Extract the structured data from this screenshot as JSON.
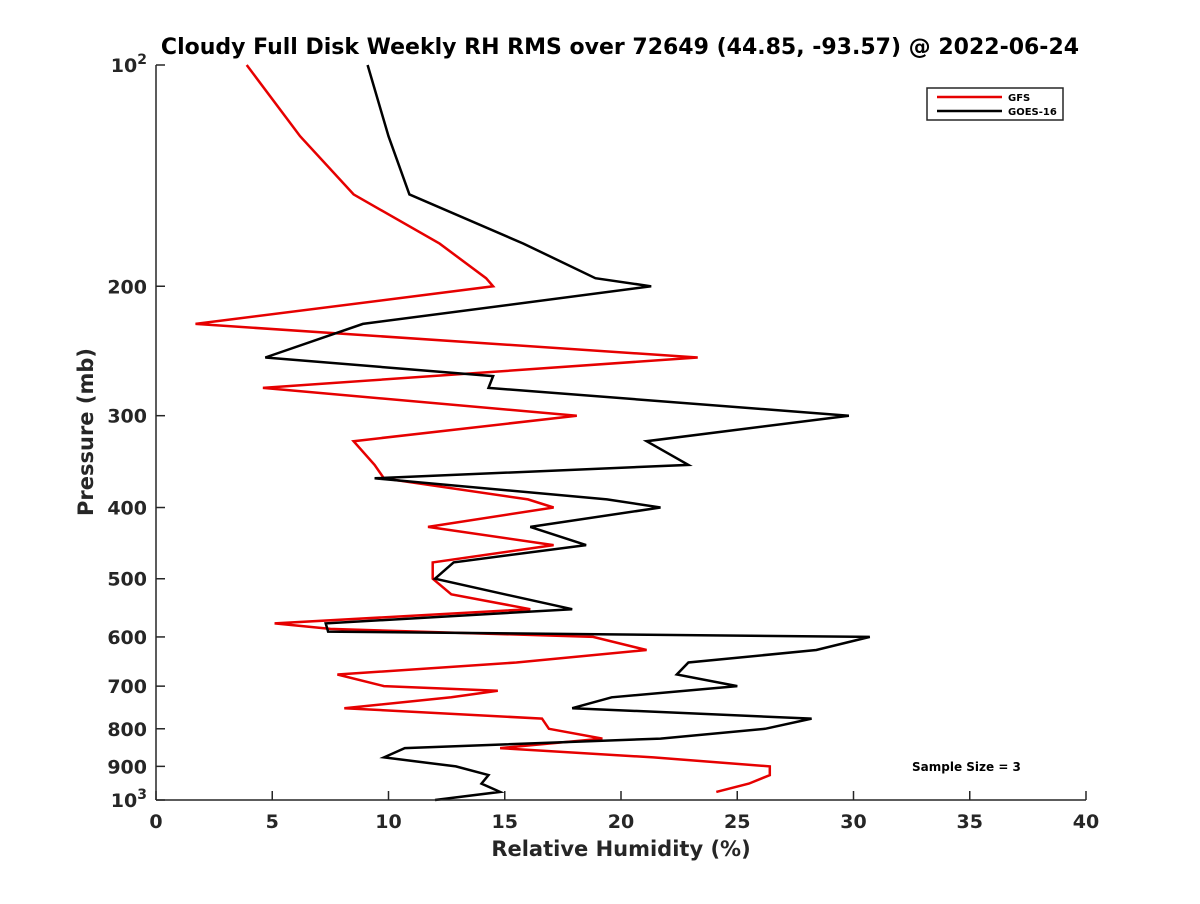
{
  "chart_data": {
    "type": "line",
    "title": "Cloudy Full Disk Weekly RH RMS over 72649 (44.85, -93.57) @ 2022-06-24",
    "xlabel": "Relative Humidity (%)",
    "ylabel": "Pressure (mb)",
    "xlim": [
      0,
      40
    ],
    "ylim": [
      100,
      1000
    ],
    "yscale": "log",
    "y_reversed": true,
    "grid": false,
    "legend_position": "top-right",
    "x_ticks": [
      0,
      5,
      10,
      15,
      20,
      25,
      30,
      35,
      40
    ],
    "x_tick_labels": [
      "0",
      "5",
      "10",
      "15",
      "20",
      "25",
      "30",
      "35",
      "40"
    ],
    "y_ticks": [
      100,
      200,
      300,
      400,
      500,
      600,
      700,
      800,
      900,
      1000
    ],
    "y_tick_labels": [
      {
        "value": 100,
        "base": "10",
        "exp": "2"
      },
      {
        "value": 200,
        "base": "200",
        "exp": ""
      },
      {
        "value": 300,
        "base": "300",
        "exp": ""
      },
      {
        "value": 400,
        "base": "400",
        "exp": ""
      },
      {
        "value": 500,
        "base": "500",
        "exp": ""
      },
      {
        "value": 600,
        "base": "600",
        "exp": ""
      },
      {
        "value": 700,
        "base": "700",
        "exp": ""
      },
      {
        "value": 800,
        "base": "800",
        "exp": ""
      },
      {
        "value": 900,
        "base": "900",
        "exp": ""
      },
      {
        "value": 1000,
        "base": "10",
        "exp": "3"
      }
    ],
    "annotation": "Sample Size = 3",
    "series": [
      {
        "name": "GFS",
        "color": "#e60000",
        "points": [
          [
            3.9,
            100
          ],
          [
            6.2,
            125
          ],
          [
            8.5,
            150
          ],
          [
            12.2,
            175
          ],
          [
            14.2,
            195
          ],
          [
            14.5,
            200
          ],
          [
            1.7,
            225
          ],
          [
            23.3,
            250
          ],
          [
            4.6,
            275
          ],
          [
            18.1,
            300
          ],
          [
            8.5,
            325
          ],
          [
            9.4,
            350
          ],
          [
            9.8,
            365
          ],
          [
            16.0,
            390
          ],
          [
            17.1,
            400
          ],
          [
            11.7,
            425
          ],
          [
            17.1,
            450
          ],
          [
            11.9,
            475
          ],
          [
            11.9,
            500
          ],
          [
            12.7,
            525
          ],
          [
            16.1,
            550
          ],
          [
            5.1,
            575
          ],
          [
            7.5,
            585
          ],
          [
            18.8,
            600
          ],
          [
            21.1,
            625
          ],
          [
            15.5,
            650
          ],
          [
            7.8,
            675
          ],
          [
            9.8,
            700
          ],
          [
            14.7,
            710
          ],
          [
            12.7,
            725
          ],
          [
            8.1,
            750
          ],
          [
            16.6,
            775
          ],
          [
            16.9,
            800
          ],
          [
            19.2,
            825
          ],
          [
            14.8,
            850
          ],
          [
            21.4,
            875
          ],
          [
            26.4,
            900
          ],
          [
            26.4,
            925
          ],
          [
            25.5,
            950
          ],
          [
            24.1,
            975
          ]
        ]
      },
      {
        "name": "GOES-16",
        "color": "#000000",
        "points": [
          [
            9.1,
            100
          ],
          [
            10.0,
            125
          ],
          [
            10.9,
            150
          ],
          [
            15.8,
            175
          ],
          [
            18.9,
            195
          ],
          [
            21.3,
            200
          ],
          [
            8.9,
            225
          ],
          [
            4.7,
            250
          ],
          [
            14.5,
            265
          ],
          [
            14.3,
            275
          ],
          [
            29.8,
            300
          ],
          [
            21.1,
            325
          ],
          [
            22.9,
            350
          ],
          [
            9.4,
            365
          ],
          [
            19.4,
            390
          ],
          [
            21.7,
            400
          ],
          [
            16.1,
            425
          ],
          [
            18.5,
            450
          ],
          [
            12.8,
            475
          ],
          [
            12.0,
            500
          ],
          [
            15.0,
            525
          ],
          [
            17.9,
            550
          ],
          [
            7.3,
            575
          ],
          [
            7.4,
            590
          ],
          [
            30.7,
            600
          ],
          [
            28.4,
            625
          ],
          [
            22.9,
            650
          ],
          [
            22.4,
            675
          ],
          [
            25.0,
            700
          ],
          [
            19.6,
            725
          ],
          [
            17.9,
            750
          ],
          [
            28.2,
            775
          ],
          [
            26.2,
            800
          ],
          [
            21.7,
            825
          ],
          [
            10.7,
            850
          ],
          [
            9.8,
            875
          ],
          [
            12.9,
            900
          ],
          [
            14.3,
            925
          ],
          [
            14.0,
            950
          ],
          [
            14.8,
            975
          ],
          [
            12.0,
            1000
          ]
        ]
      }
    ]
  }
}
